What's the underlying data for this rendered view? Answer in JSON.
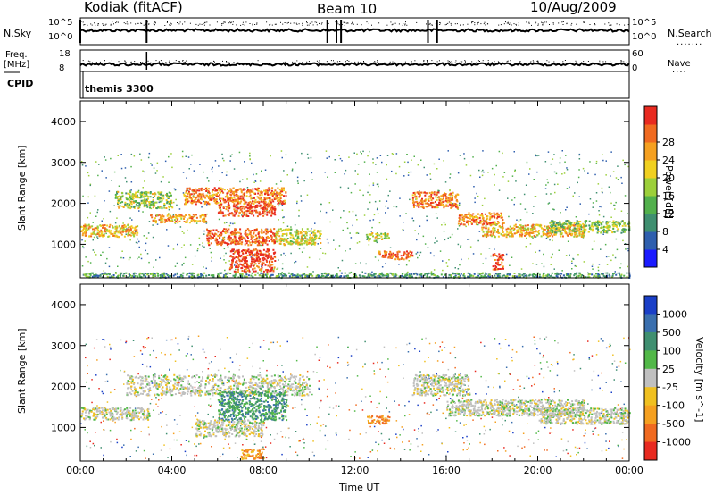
{
  "header": {
    "station": "Kodiak (fitACF)",
    "beam": "Beam 10",
    "date": "10/Aug/2009"
  },
  "noise_panel": {
    "left_label": "N.Sky",
    "right_label": "N.Search",
    "left_ticks": [
      "10^5",
      "10^0"
    ],
    "right_ticks": [
      "10^5",
      "10^0"
    ]
  },
  "freq_panel": {
    "left_label_1": "Freq.",
    "left_label_2": "[MHz]",
    "right_label": "Nave",
    "left_ticks": [
      "18",
      "8"
    ],
    "right_ticks": [
      "60",
      "0"
    ]
  },
  "cpid_panel": {
    "label": "CPID",
    "program": "themis 3300"
  },
  "chart_data": [
    {
      "type": "heatmap",
      "title": "",
      "xlabel": "",
      "ylabel": "Slant Range [km]",
      "x_ticks": [],
      "y_ticks": [
        "1000",
        "2000",
        "3000",
        "4000"
      ],
      "ylim": [
        180,
        4500
      ],
      "xlim_hours": [
        0,
        24
      ],
      "colorbar": {
        "label": "Power [dB]",
        "ticks": [
          "4",
          "8",
          "12",
          "16",
          "20",
          "24",
          "28"
        ],
        "colors": [
          "#1b1bff",
          "#2f5fae",
          "#3f8f70",
          "#52b04c",
          "#9ccf3a",
          "#f0d020",
          "#f5a020",
          "#f06a20",
          "#e82a20"
        ]
      },
      "echo_regions": [
        {
          "t": [
            0,
            2.5
          ],
          "r": [
            1200,
            1500
          ],
          "level": 0.7
        },
        {
          "t": [
            1.5,
            4
          ],
          "r": [
            1900,
            2300
          ],
          "level": 0.5
        },
        {
          "t": [
            3,
            5.5
          ],
          "r": [
            1550,
            1750
          ],
          "level": 0.75
        },
        {
          "t": [
            4.5,
            9
          ],
          "r": [
            2000,
            2400
          ],
          "level": 0.85
        },
        {
          "t": [
            6,
            8.5
          ],
          "r": [
            1700,
            2000
          ],
          "level": 0.95
        },
        {
          "t": [
            5.5,
            8.5
          ],
          "r": [
            1000,
            1400
          ],
          "level": 0.9
        },
        {
          "t": [
            6.5,
            8.5
          ],
          "r": [
            350,
            900
          ],
          "level": 1.0
        },
        {
          "t": [
            8.5,
            10.5
          ],
          "r": [
            1000,
            1400
          ],
          "level": 0.6
        },
        {
          "t": [
            12.5,
            13.5
          ],
          "r": [
            1100,
            1300
          ],
          "level": 0.5
        },
        {
          "t": [
            13,
            14.5
          ],
          "r": [
            650,
            850
          ],
          "level": 0.9
        },
        {
          "t": [
            14.5,
            16.5
          ],
          "r": [
            1900,
            2300
          ],
          "level": 0.85
        },
        {
          "t": [
            16.5,
            18.5
          ],
          "r": [
            1500,
            1800
          ],
          "level": 0.8
        },
        {
          "t": [
            17.5,
            22
          ],
          "r": [
            1200,
            1500
          ],
          "level": 0.7
        },
        {
          "t": [
            18,
            18.5
          ],
          "r": [
            400,
            800
          ],
          "level": 0.95
        },
        {
          "t": [
            20.5,
            24
          ],
          "r": [
            1300,
            1600
          ],
          "level": 0.45
        },
        {
          "t": [
            0,
            24
          ],
          "r": [
            200,
            320
          ],
          "level": 0.3
        }
      ]
    },
    {
      "type": "heatmap",
      "title": "",
      "xlabel": "Time UT",
      "ylabel": "Slant Range [km]",
      "x_ticks": [
        "00:00",
        "04:00",
        "08:00",
        "12:00",
        "16:00",
        "20:00",
        "00:00"
      ],
      "y_ticks": [
        "1000",
        "2000",
        "3000",
        "4000"
      ],
      "ylim": [
        180,
        4500
      ],
      "xlim_hours": [
        0,
        24
      ],
      "colorbar": {
        "label": "Velocity [m s^-1]",
        "ticks": [
          "1000",
          "500",
          "100",
          "25",
          "-25",
          "-100",
          "-500",
          "-1000"
        ],
        "colors": [
          "#1a3fc7",
          "#3a6fae",
          "#3f8f70",
          "#52b848",
          "#c0c0c0",
          "#f0c020",
          "#f5a020",
          "#f06a20",
          "#e82a20"
        ]
      },
      "echo_regions": [
        {
          "t": [
            0,
            3
          ],
          "r": [
            1200,
            1500
          ],
          "vel": "ground"
        },
        {
          "t": [
            2,
            10
          ],
          "r": [
            1800,
            2300
          ],
          "vel": "ground"
        },
        {
          "t": [
            6,
            9
          ],
          "r": [
            1200,
            1900
          ],
          "vel": "positive"
        },
        {
          "t": [
            5,
            8
          ],
          "r": [
            800,
            1200
          ],
          "vel": "ground"
        },
        {
          "t": [
            7,
            8
          ],
          "r": [
            250,
            500
          ],
          "vel": "negative"
        },
        {
          "t": [
            12.5,
            13.5
          ],
          "r": [
            1100,
            1300
          ],
          "vel": "negative"
        },
        {
          "t": [
            14.5,
            17
          ],
          "r": [
            1800,
            2300
          ],
          "vel": "ground"
        },
        {
          "t": [
            16,
            22
          ],
          "r": [
            1300,
            1700
          ],
          "vel": "ground"
        },
        {
          "t": [
            20,
            24
          ],
          "r": [
            1100,
            1500
          ],
          "vel": "ground"
        }
      ]
    }
  ]
}
